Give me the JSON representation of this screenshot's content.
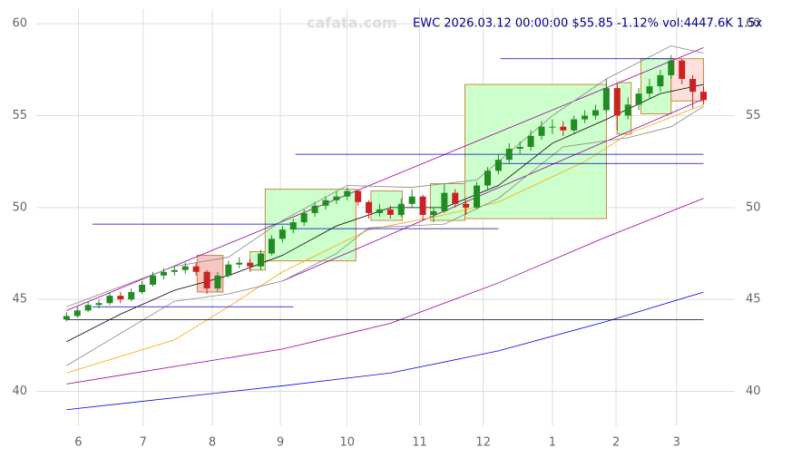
{
  "chart_data": {
    "type": "candlestick",
    "title": "EWC 2026.03.12 00:00:00 $55.85 -1.12% vol:4447.6K 1.5x",
    "watermark": "cafata.com",
    "xlim": [
      -2.8,
      61.9
    ],
    "ylim": [
      38.1,
      60.8
    ],
    "yticks": [
      40,
      45,
      50,
      55,
      60
    ],
    "xticks": [
      {
        "value": 1.1,
        "label": "6"
      },
      {
        "value": 7.1,
        "label": "7"
      },
      {
        "value": 13.5,
        "label": "8"
      },
      {
        "value": 19.8,
        "label": "9"
      },
      {
        "value": 26,
        "label": "10"
      },
      {
        "value": 32.7,
        "label": "11"
      },
      {
        "value": 38.6,
        "label": "12"
      },
      {
        "value": 45,
        "label": "1"
      },
      {
        "value": 50.9,
        "label": "2"
      },
      {
        "value": 56.5,
        "label": "3"
      }
    ],
    "grid": true,
    "up_color": "#228b22",
    "down_color": "#cc2222",
    "open": [
      43.9,
      44.1,
      44.4,
      44.7,
      44.8,
      45.2,
      45.0,
      45.4,
      45.8,
      46.3,
      46.5,
      46.6,
      46.8,
      46.5,
      45.6,
      46.3,
      46.9,
      47.0,
      46.8,
      47.5,
      48.3,
      48.8,
      49.2,
      49.7,
      50.1,
      50.4,
      50.6,
      50.9,
      50.3,
      49.7,
      49.9,
      49.6,
      50.2,
      50.6,
      49.6,
      49.8,
      50.8,
      50.2,
      50.0,
      51.2,
      52.0,
      52.6,
      53.2,
      53.3,
      53.9,
      54.4,
      54.4,
      54.2,
      54.8,
      55.0,
      55.3,
      56.5,
      55.0,
      55.6,
      56.2,
      56.6,
      57.2,
      58.0,
      57.0,
      56.3
    ],
    "high": [
      44.3,
      44.6,
      44.9,
      45.0,
      45.4,
      45.4,
      45.6,
      46.0,
      46.5,
      46.7,
      46.8,
      47.0,
      47.0,
      46.6,
      46.5,
      47.1,
      47.3,
      47.2,
      47.7,
      48.5,
      49.0,
      49.4,
      49.9,
      50.3,
      50.6,
      50.9,
      51.1,
      51.0,
      50.4,
      50.2,
      50.1,
      50.5,
      51.0,
      50.7,
      50.0,
      51.3,
      51.0,
      50.4,
      51.4,
      52.2,
      52.9,
      53.5,
      53.6,
      54.2,
      54.7,
      54.8,
      54.7,
      55.0,
      55.3,
      55.6,
      57.0,
      56.7,
      56.0,
      56.5,
      57.0,
      57.5,
      58.3,
      58.1,
      57.2,
      56.6
    ],
    "low": [
      43.8,
      44.0,
      44.3,
      44.5,
      44.7,
      44.8,
      44.9,
      45.3,
      45.7,
      46.1,
      46.3,
      46.4,
      46.3,
      45.3,
      45.4,
      46.2,
      46.7,
      46.5,
      46.6,
      47.4,
      48.1,
      48.6,
      49.0,
      49.5,
      49.9,
      50.2,
      50.4,
      50.1,
      49.4,
      49.5,
      49.4,
      49.5,
      50.0,
      49.3,
      49.2,
      49.7,
      50.0,
      49.6,
      49.9,
      51.0,
      51.8,
      52.4,
      52.9,
      53.1,
      53.7,
      54.0,
      53.9,
      54.0,
      54.6,
      54.8,
      55.1,
      54.2,
      54.8,
      55.3,
      55.9,
      56.3,
      57.0,
      56.7,
      55.4,
      55.6
    ],
    "close": [
      44.1,
      44.4,
      44.7,
      44.8,
      45.2,
      45.0,
      45.4,
      45.8,
      46.3,
      46.5,
      46.6,
      46.8,
      46.5,
      45.6,
      46.3,
      46.9,
      47.0,
      46.8,
      47.5,
      48.3,
      48.8,
      49.2,
      49.7,
      50.1,
      50.4,
      50.6,
      50.9,
      50.3,
      49.7,
      49.9,
      49.6,
      50.2,
      50.6,
      49.6,
      49.8,
      50.8,
      50.2,
      50.0,
      51.2,
      52.0,
      52.6,
      53.2,
      53.3,
      53.9,
      54.4,
      54.4,
      54.2,
      54.8,
      55.0,
      55.3,
      56.5,
      55.0,
      55.6,
      56.2,
      56.6,
      57.2,
      58.0,
      57.0,
      56.3,
      55.85
    ],
    "boxes": [
      {
        "x": [
          12.1,
          14.5
        ],
        "y": [
          45.4,
          47.4
        ],
        "color": "#f4c7c3"
      },
      {
        "x": [
          17.0,
          18.4
        ],
        "y": [
          46.6,
          47.6
        ],
        "color": "#ccffcc"
      },
      {
        "x": [
          18.4,
          26.8
        ],
        "y": [
          47.1,
          51.0
        ],
        "color": "#ccffcc"
      },
      {
        "x": [
          28.2,
          31.1
        ],
        "y": [
          49.3,
          50.9
        ],
        "color": "#ccffcc"
      },
      {
        "x": [
          33.7,
          36.9
        ],
        "y": [
          49.3,
          51.3
        ],
        "color": "#ccffcc"
      },
      {
        "x": [
          36.9,
          50.0
        ],
        "y": [
          49.4,
          56.7
        ],
        "color": "#ccffcc"
      },
      {
        "x": [
          51.0,
          52.3
        ],
        "y": [
          54.0,
          56.8
        ],
        "color": "#ccffcc"
      },
      {
        "x": [
          53.2,
          56.0
        ],
        "y": [
          55.1,
          58.1
        ],
        "color": "#ccffcc"
      },
      {
        "x": [
          56.0,
          59.0
        ],
        "y": [
          55.8,
          58.1
        ],
        "color": "#fde0dc"
      }
    ],
    "lines": [
      {
        "color": "#990099",
        "x": [
          0,
          59
        ],
        "y": [
          44.4,
          58.7
        ]
      },
      {
        "color": "#990099",
        "x": [
          20,
          59
        ],
        "y": [
          46.0,
          55.9
        ]
      },
      {
        "color": "#990099",
        "x": [
          0,
          20,
          30,
          40,
          50,
          59
        ],
        "y": [
          40.4,
          42.3,
          43.7,
          45.9,
          48.4,
          50.5
        ]
      },
      {
        "color": "#0000ee",
        "x": [
          0,
          20,
          30,
          40,
          50,
          59
        ],
        "y": [
          39.0,
          40.3,
          41.0,
          42.2,
          43.8,
          45.4
        ]
      },
      {
        "color": "#ffa500",
        "x": [
          0,
          10,
          15,
          20,
          28,
          35,
          40,
          48,
          52,
          59
        ],
        "y": [
          41.0,
          42.8,
          44.6,
          46.5,
          48.8,
          49.6,
          50.3,
          52.5,
          54.0,
          55.6
        ]
      },
      {
        "color": "#000000",
        "x": [
          0,
          5,
          10,
          15,
          20,
          25,
          30,
          35,
          40,
          45,
          50,
          55,
          59
        ],
        "y": [
          42.7,
          44.2,
          45.5,
          46.3,
          47.4,
          49.0,
          50.0,
          50.0,
          51.2,
          53.5,
          54.8,
          56.2,
          56.7
        ]
      },
      {
        "color": "#888888",
        "x": [
          0,
          10,
          15,
          20,
          26,
          32,
          38,
          45,
          50,
          56,
          59
        ],
        "y": [
          44.6,
          46.8,
          47.3,
          49.3,
          51.2,
          51.1,
          51.5,
          55.0,
          57.0,
          58.8,
          58.4
        ]
      },
      {
        "color": "#888888",
        "x": [
          0,
          10,
          15,
          20,
          25,
          28,
          35,
          40,
          46,
          52,
          56,
          59
        ],
        "y": [
          41.4,
          44.9,
          45.3,
          46.0,
          47.5,
          48.9,
          49.1,
          50.5,
          53.3,
          53.8,
          54.4,
          55.5
        ]
      },
      {
        "color": "#0000cc",
        "x": [
          2.4,
          21
        ],
        "y": [
          49.1,
          49.1
        ]
      },
      {
        "color": "#0000cc",
        "x": [
          21,
          40
        ],
        "y": [
          48.85,
          48.85
        ]
      },
      {
        "color": "#0000cc",
        "x": [
          21.2,
          59
        ],
        "y": [
          52.9,
          52.9
        ]
      },
      {
        "color": "#0000cc",
        "x": [
          40,
          59
        ],
        "y": [
          52.4,
          52.4
        ]
      },
      {
        "color": "#0000cc",
        "x": [
          40.2,
          56.3
        ],
        "y": [
          58.1,
          58.1
        ]
      },
      {
        "color": "#0000cc",
        "x": [
          2.4,
          21
        ],
        "y": [
          44.6,
          44.6
        ]
      },
      {
        "color": "#000033",
        "x": [
          0,
          59
        ],
        "y": [
          43.9,
          43.9
        ]
      }
    ]
  }
}
